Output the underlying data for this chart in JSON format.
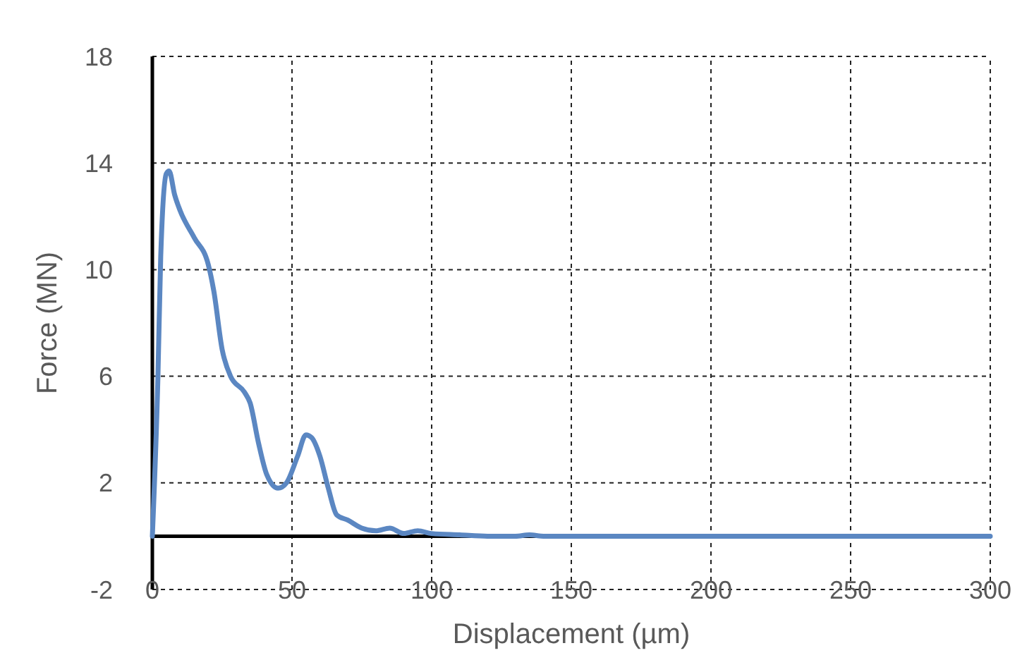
{
  "chart_data": {
    "type": "line",
    "xlabel": "Displacement (µm)",
    "ylabel": "Force (MN)",
    "xlim": [
      0,
      300
    ],
    "ylim": [
      -2,
      18
    ],
    "xticks": [
      0,
      50,
      100,
      150,
      200,
      250,
      300
    ],
    "yticks": [
      -2,
      2,
      6,
      10,
      14,
      18
    ],
    "grid": true,
    "line_style": "solid",
    "marker": "none",
    "series": [
      {
        "color": "#5b87c2",
        "x": [
          0,
          2,
          3,
          5,
          6,
          8,
          10,
          15,
          20,
          22,
          25,
          28,
          33,
          35,
          38,
          41,
          45,
          48,
          52,
          55,
          57,
          60,
          63,
          66,
          70,
          75,
          80,
          85,
          90,
          95,
          100,
          110,
          120,
          130,
          135,
          140,
          150,
          200,
          250,
          300
        ],
        "values": [
          0,
          6,
          10.5,
          13.6,
          13.7,
          12.8,
          12.2,
          11.2,
          10.2,
          9.2,
          7,
          6,
          5.4,
          5,
          3.5,
          2.3,
          1.8,
          2,
          3,
          3.8,
          3.7,
          3,
          1.8,
          0.8,
          0.6,
          0.3,
          0.2,
          0.3,
          0.1,
          0.2,
          0.1,
          0.05,
          0,
          0,
          0.05,
          0,
          0,
          0,
          0,
          0
        ]
      }
    ]
  }
}
